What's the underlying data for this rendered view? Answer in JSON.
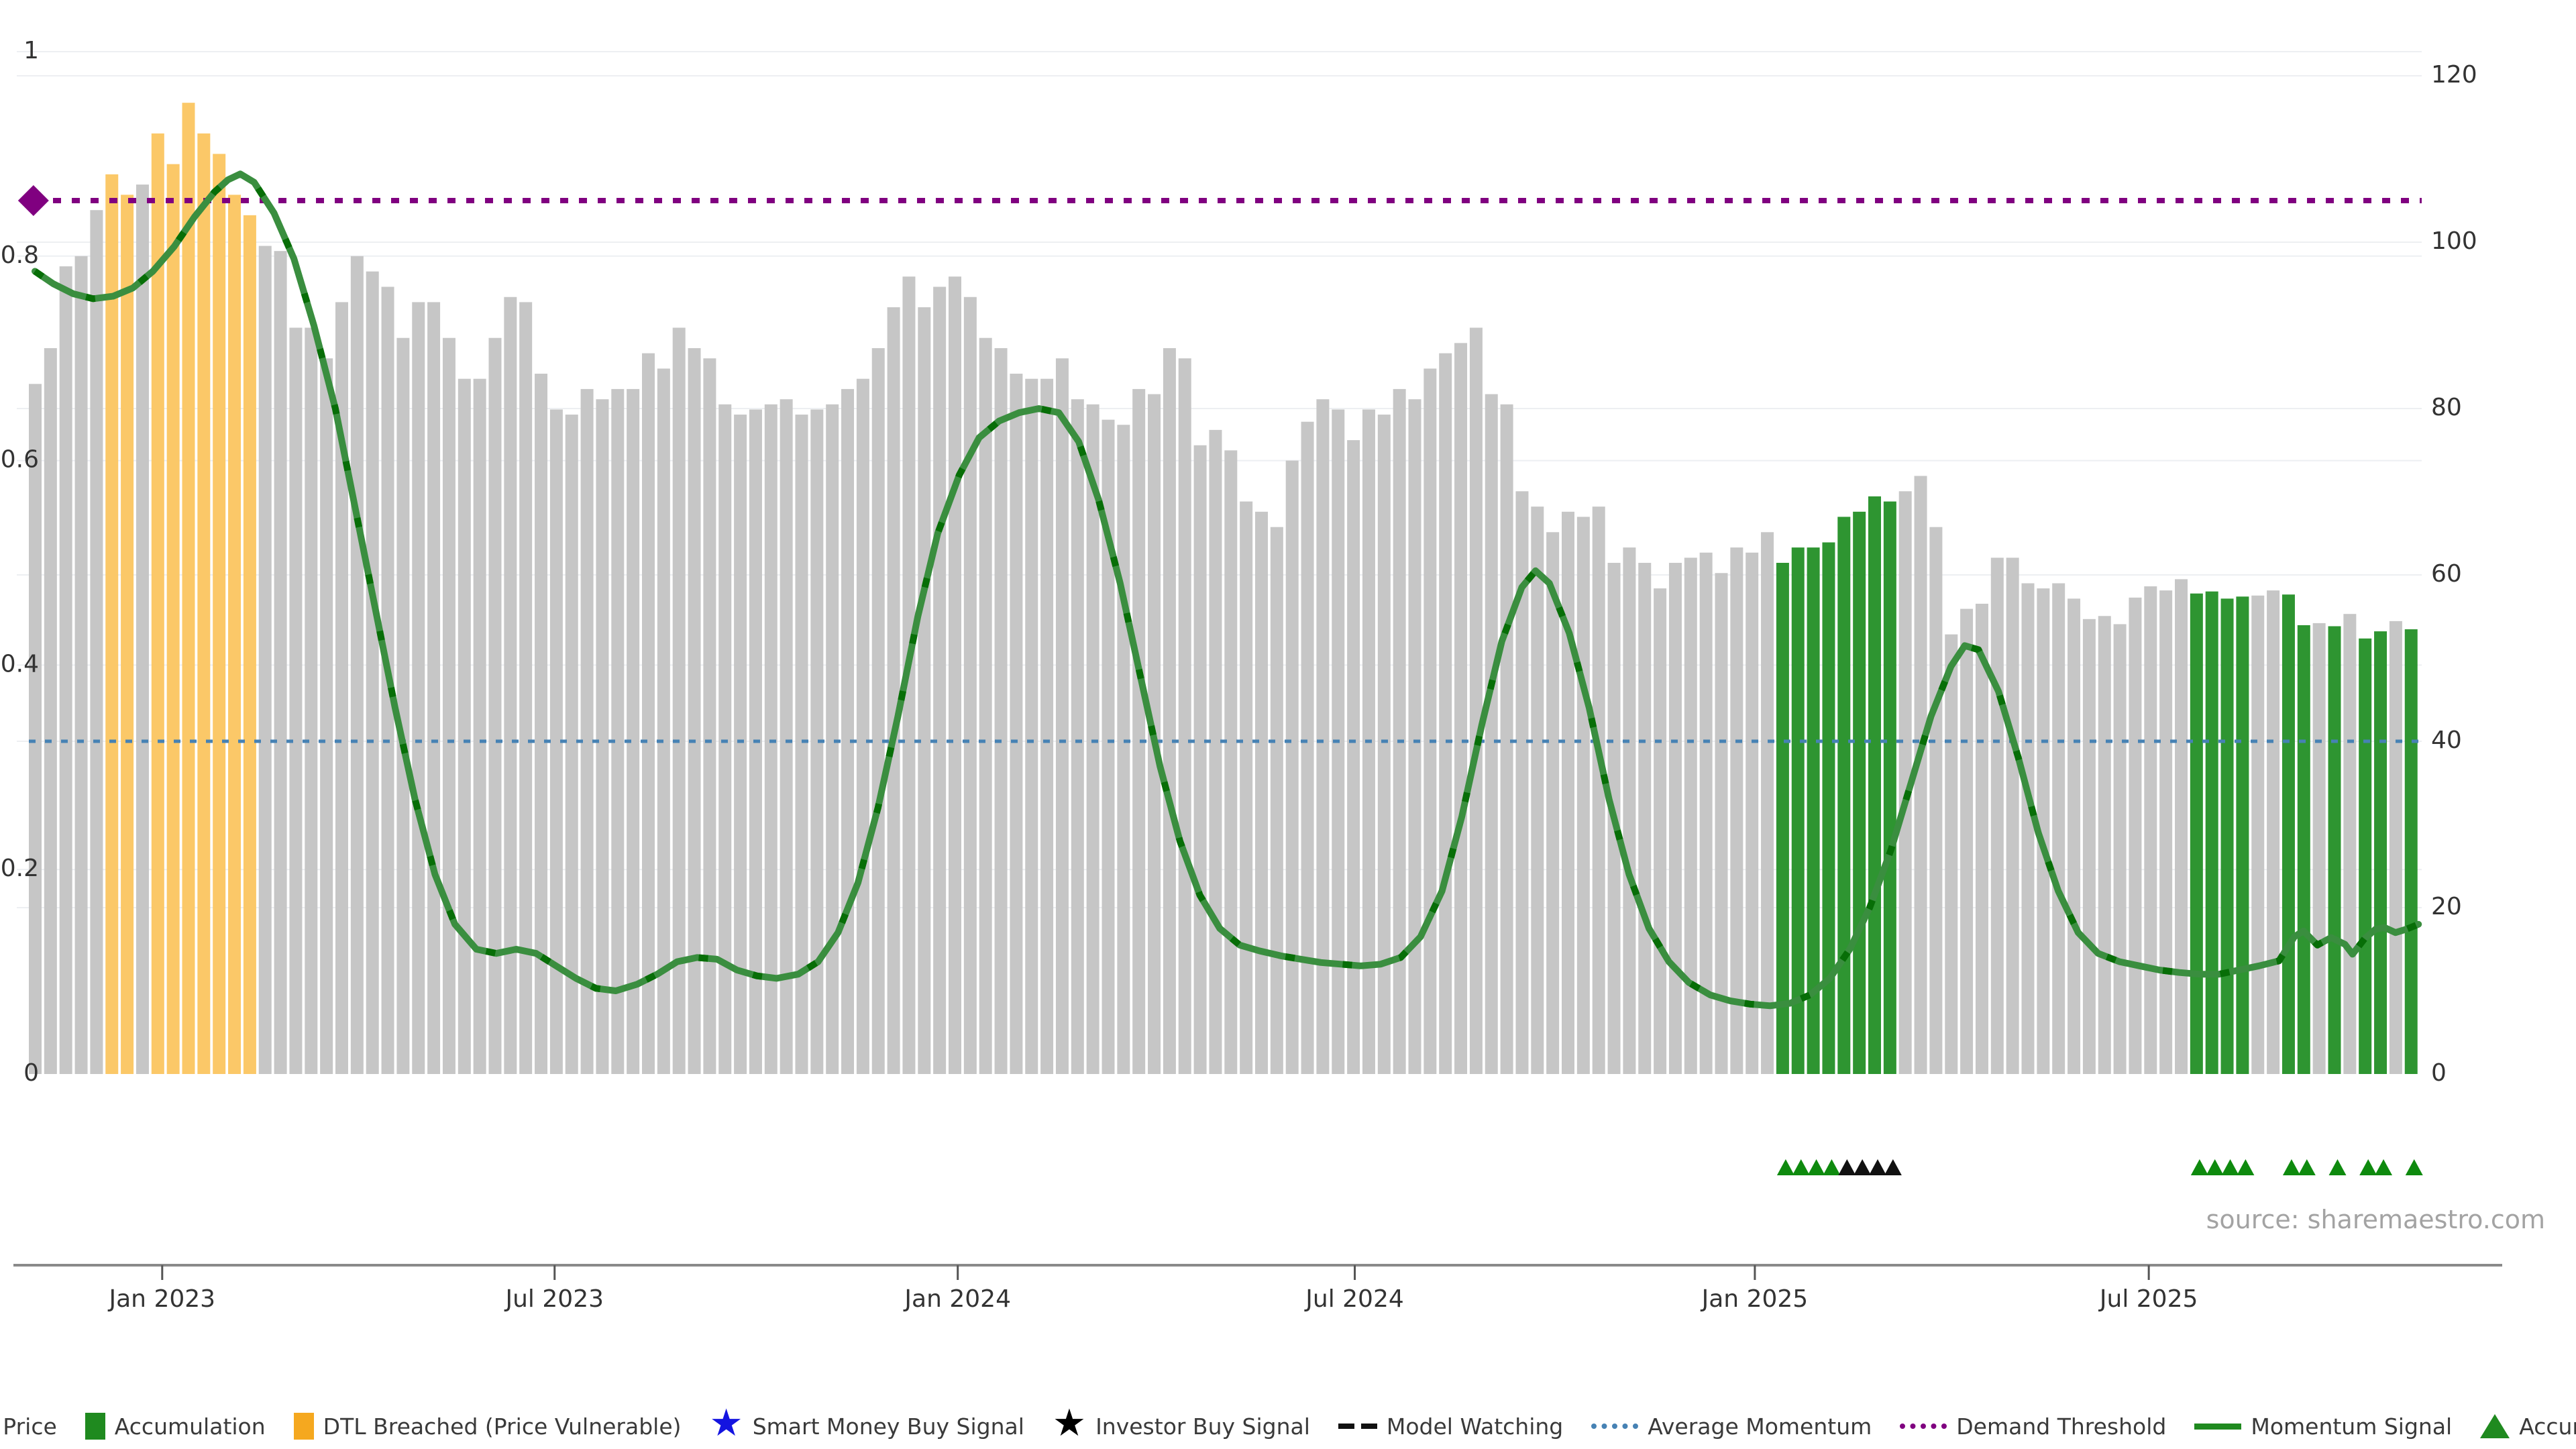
{
  "chart": {
    "source_note": "source: sharemaestro.com",
    "colors": {
      "background": "#ffffff",
      "close_price_bar": "#c6c6c6",
      "dtl_breached_bar": "#fbc868",
      "accumulation_bar": "#2e9531",
      "momentum_line": "#3a8e3f",
      "momentum_line_dash": "#076e07",
      "average_momentum_line": "#4682b4",
      "demand_threshold_line": "#800080",
      "diamond_marker": "#800080",
      "accumulation_marker": "#0e8a0e",
      "investor_marker": "#111111",
      "legend_close_swatch": "#b9b9b9",
      "legend_accum_swatch": "#1f8a1f",
      "legend_dtl_swatch": "#f5a81f",
      "smart_money_star": "#1414e0",
      "investor_star": "#000000",
      "gridline": "#edeff2",
      "axis_line": "#8a8a8a",
      "tick_text": "#333333",
      "source_text": "#a3a3a3"
    }
  },
  "chart_data": {
    "type": "bar",
    "subtype": "weekly close-price bars with momentum line overlay, dual y-axes",
    "title": "",
    "xlabel": "",
    "ylabel": "",
    "left_axis": {
      "range": [
        0,
        1
      ],
      "tick_labels": [
        "0",
        "0.2",
        "0.4",
        "0.6",
        "0.8",
        "1"
      ],
      "tick_values": [
        0,
        0.2,
        0.4,
        0.6,
        0.8,
        1
      ]
    },
    "right_axis": {
      "range": [
        0,
        120
      ],
      "tick_labels": [
        "0",
        "20",
        "40",
        "60",
        "80",
        "100",
        "120"
      ],
      "tick_values": [
        0,
        20,
        40,
        60,
        80,
        100,
        120
      ]
    },
    "x_axis": {
      "ticks": [
        {
          "label": "Jan 2023",
          "pos": 8.7
        },
        {
          "label": "Jul 2023",
          "pos": 34.3
        },
        {
          "label": "Jan 2024",
          "pos": 60.6
        },
        {
          "label": "Jul 2024",
          "pos": 86.5
        },
        {
          "label": "Jan 2025",
          "pos": 112.6
        },
        {
          "label": "Jul 2025",
          "pos": 138.3
        }
      ]
    },
    "series": [
      {
        "name": "Close Price",
        "type": "bar",
        "axis": "left",
        "values": [
          0.675,
          0.71,
          0.79,
          0.8,
          0.845,
          0.88,
          0.86,
          0.87,
          0.92,
          0.89,
          0.95,
          0.92,
          0.9,
          0.86,
          0.84,
          0.81,
          0.805,
          0.73,
          0.73,
          0.7,
          0.755,
          0.8,
          0.785,
          0.77,
          0.72,
          0.755,
          0.755,
          0.72,
          0.68,
          0.68,
          0.72,
          0.76,
          0.755,
          0.685,
          0.65,
          0.645,
          0.67,
          0.66,
          0.67,
          0.67,
          0.705,
          0.69,
          0.73,
          0.71,
          0.7,
          0.655,
          0.645,
          0.65,
          0.655,
          0.66,
          0.645,
          0.65,
          0.655,
          0.67,
          0.68,
          0.71,
          0.75,
          0.78,
          0.75,
          0.77,
          0.78,
          0.76,
          0.72,
          0.71,
          0.685,
          0.68,
          0.68,
          0.7,
          0.66,
          0.655,
          0.64,
          0.635,
          0.67,
          0.665,
          0.71,
          0.7,
          0.615,
          0.63,
          0.61,
          0.56,
          0.55,
          0.535,
          0.6,
          0.638,
          0.66,
          0.65,
          0.62,
          0.65,
          0.645,
          0.67,
          0.66,
          0.69,
          0.705,
          0.715,
          0.73,
          0.665,
          0.655,
          0.57,
          0.555,
          0.53,
          0.55,
          0.545,
          0.555,
          0.5,
          0.515,
          0.5,
          0.475,
          0.5,
          0.505,
          0.51,
          0.49,
          0.515,
          0.51,
          0.53,
          0.5,
          0.515,
          0.515,
          0.52,
          0.545,
          0.55,
          0.565,
          0.56,
          0.57,
          0.585,
          0.535,
          0.43,
          0.455,
          0.46,
          0.505,
          0.505,
          0.48,
          0.475,
          0.48,
          0.465,
          0.445,
          0.448,
          0.44,
          0.466,
          0.477,
          0.473,
          0.484,
          0.47,
          0.472,
          0.465,
          0.467,
          0.468,
          0.473,
          0.469,
          0.439,
          0.441,
          0.438,
          0.45,
          0.426,
          0.433,
          0.443,
          0.435
        ],
        "dtl_breached_indices": [
          5,
          6,
          8,
          9,
          10,
          11,
          12,
          13,
          14
        ],
        "accumulation_indices": [
          114,
          115,
          116,
          117,
          118,
          119,
          120,
          121,
          141,
          142,
          143,
          144,
          147,
          148,
          150,
          152,
          153,
          155
        ]
      },
      {
        "name": "Momentum Signal",
        "type": "line",
        "axis": "right",
        "points": [
          [
            0,
            96.5
          ],
          [
            1.2,
            95
          ],
          [
            2.5,
            93.8
          ],
          [
            3.8,
            93.2
          ],
          [
            5.1,
            93.5
          ],
          [
            6.4,
            94.5
          ],
          [
            7.7,
            96.5
          ],
          [
            9.1,
            99.5
          ],
          [
            10.4,
            103
          ],
          [
            11.7,
            106
          ],
          [
            12.6,
            107.5
          ],
          [
            13.4,
            108.2
          ],
          [
            14.3,
            107.2
          ],
          [
            15.6,
            103.5
          ],
          [
            16.9,
            98
          ],
          [
            18.2,
            90
          ],
          [
            19.6,
            80
          ],
          [
            20.9,
            68
          ],
          [
            22.2,
            56
          ],
          [
            23.5,
            44
          ],
          [
            24.8,
            33
          ],
          [
            26.1,
            24
          ],
          [
            27.4,
            18
          ],
          [
            28.8,
            15
          ],
          [
            30.1,
            14.5
          ],
          [
            31.4,
            15
          ],
          [
            32.7,
            14.5
          ],
          [
            34,
            13
          ],
          [
            35.3,
            11.5
          ],
          [
            36.6,
            10.3
          ],
          [
            37.9,
            10
          ],
          [
            39.3,
            10.8
          ],
          [
            40.6,
            12
          ],
          [
            41.9,
            13.5
          ],
          [
            43.2,
            14
          ],
          [
            44.5,
            13.8
          ],
          [
            45.8,
            12.5
          ],
          [
            47.1,
            11.8
          ],
          [
            48.4,
            11.5
          ],
          [
            49.8,
            12
          ],
          [
            51.1,
            13.5
          ],
          [
            52.4,
            17
          ],
          [
            53.7,
            23
          ],
          [
            55,
            32
          ],
          [
            56.3,
            43
          ],
          [
            57.6,
            55
          ],
          [
            58.9,
            65
          ],
          [
            60.3,
            72
          ],
          [
            61.6,
            76.5
          ],
          [
            62.9,
            78.5
          ],
          [
            64.2,
            79.5
          ],
          [
            65.5,
            80
          ],
          [
            66.8,
            79.5
          ],
          [
            68.1,
            76
          ],
          [
            69.4,
            69
          ],
          [
            70.8,
            59
          ],
          [
            72.1,
            48
          ],
          [
            73.4,
            37
          ],
          [
            74.7,
            28
          ],
          [
            76,
            21.5
          ],
          [
            77.3,
            17.5
          ],
          [
            78.6,
            15.5
          ],
          [
            79.9,
            14.8
          ],
          [
            81.3,
            14.2
          ],
          [
            82.6,
            13.8
          ],
          [
            83.9,
            13.4
          ],
          [
            85.2,
            13.2
          ],
          [
            86.5,
            13
          ],
          [
            87.8,
            13.2
          ],
          [
            89.1,
            14
          ],
          [
            90.4,
            16.5
          ],
          [
            91.8,
            22
          ],
          [
            93.1,
            31
          ],
          [
            94.4,
            42
          ],
          [
            95.7,
            52
          ],
          [
            97,
            58.5
          ],
          [
            97.9,
            60.5
          ],
          [
            98.8,
            59
          ],
          [
            100.1,
            53
          ],
          [
            101.4,
            44
          ],
          [
            102.7,
            33
          ],
          [
            104,
            24
          ],
          [
            105.3,
            17.5
          ],
          [
            106.6,
            13.5
          ],
          [
            107.9,
            11
          ],
          [
            109.3,
            9.5
          ],
          [
            110.6,
            8.8
          ],
          [
            111.9,
            8.4
          ],
          [
            113.2,
            8.2
          ],
          [
            114.5,
            8.5
          ],
          [
            115.8,
            9.5
          ],
          [
            117.1,
            11.5
          ],
          [
            118.4,
            15
          ],
          [
            119.7,
            20
          ],
          [
            121.1,
            27
          ],
          [
            122.4,
            35
          ],
          [
            123.7,
            43
          ],
          [
            125,
            49
          ],
          [
            125.9,
            51.5
          ],
          [
            126.8,
            51
          ],
          [
            128.1,
            46
          ],
          [
            129.4,
            38
          ],
          [
            130.7,
            29
          ],
          [
            132,
            22
          ],
          [
            133.3,
            17
          ],
          [
            134.6,
            14.5
          ],
          [
            136,
            13.5
          ],
          [
            137.3,
            13
          ],
          [
            138.6,
            12.5
          ],
          [
            139.9,
            12.2
          ],
          [
            141.2,
            12
          ],
          [
            142.5,
            12
          ],
          [
            143.8,
            12.5
          ],
          [
            145.1,
            13
          ],
          [
            146.4,
            13.6
          ],
          [
            147.4,
            16.5
          ],
          [
            148,
            17.2
          ],
          [
            148.9,
            15.5
          ],
          [
            149.8,
            16.4
          ],
          [
            150.7,
            15.6
          ],
          [
            151.2,
            14.4
          ],
          [
            152,
            16.3
          ],
          [
            152.7,
            17.4
          ],
          [
            153.3,
            17.6
          ],
          [
            154,
            17
          ],
          [
            154.7,
            17.4
          ],
          [
            155.5,
            18
          ]
        ]
      },
      {
        "name": "Average Momentum",
        "type": "hline",
        "axis": "right",
        "value": 40
      },
      {
        "name": "Demand Threshold",
        "type": "hline",
        "axis": "right",
        "value": 105,
        "marker": {
          "shape": "diamond",
          "pos": 0.3,
          "value": 105
        }
      }
    ],
    "markers": {
      "accumulation_triangles_positions": [
        114,
        115,
        116,
        117,
        141,
        142,
        143,
        144,
        147,
        148,
        150,
        152,
        153,
        155
      ],
      "investor_triangles_positions": [
        118,
        119,
        120,
        121
      ]
    },
    "grid": true,
    "legend_position": "bottom-center"
  },
  "legend": {
    "items": [
      {
        "name": "legend-close-price",
        "swatch": "square",
        "color_key": "legend_close_swatch",
        "label": "Close Price"
      },
      {
        "name": "legend-accumulation-bar",
        "swatch": "square",
        "color_key": "legend_accum_swatch",
        "label": "Accumulation"
      },
      {
        "name": "legend-dtl-breached",
        "swatch": "square",
        "color_key": "legend_dtl_swatch",
        "label": "DTL Breached (Price Vulnerable)"
      },
      {
        "name": "legend-smart-money-buy-signal",
        "swatch": "star",
        "color_key": "smart_money_star",
        "label": "Smart Money Buy Signal"
      },
      {
        "name": "legend-investor-buy-signal",
        "swatch": "star",
        "color_key": "investor_star",
        "label": "Investor Buy Signal"
      },
      {
        "name": "legend-model-watching",
        "swatch": "dashes",
        "color_key": "investor_star",
        "label": "Model Watching"
      },
      {
        "name": "legend-average-momentum",
        "swatch": "dots",
        "color_key": "average_momentum_line",
        "label": "Average Momentum"
      },
      {
        "name": "legend-demand-threshold",
        "swatch": "dots",
        "color_key": "demand_threshold_line",
        "label": "Demand Threshold"
      },
      {
        "name": "legend-momentum-signal",
        "swatch": "line",
        "color_key": "legend_accum_swatch",
        "label": "Momentum Signal"
      },
      {
        "name": "legend-accumulation-marker",
        "swatch": "triangle",
        "color_key": "legend_accum_swatch",
        "label": "Accumulation"
      }
    ]
  }
}
